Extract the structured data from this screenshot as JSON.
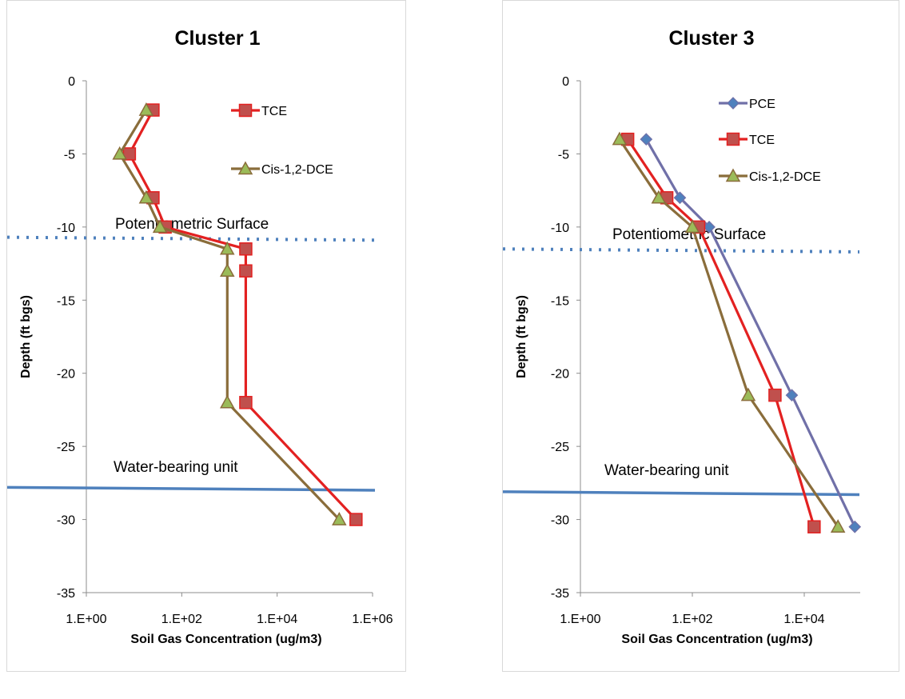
{
  "chart_data": [
    {
      "type": "line",
      "title": "Cluster 1",
      "xlabel": "Soil Gas Concentration (ug/m3)",
      "ylabel": "Depth (ft bgs)",
      "x_scale": "log",
      "xlim": [
        1,
        1000000
      ],
      "ylim": [
        -35,
        0
      ],
      "x_ticks": [
        "1.E+00",
        "1.E+02",
        "1.E+04",
        "1.E+06"
      ],
      "y_ticks": [
        "0",
        "-5",
        "-10",
        "-15",
        "-20",
        "-25",
        "-30",
        "-35"
      ],
      "grid": false,
      "legend_position": "top-right",
      "series": [
        {
          "name": "TCE",
          "color": "#e32121",
          "marker": "square",
          "marker_fill": "#c0504d",
          "points": [
            [
              25,
              -2
            ],
            [
              8,
              -5
            ],
            [
              25,
              -8
            ],
            [
              45,
              -10
            ],
            [
              2200,
              -11.5
            ],
            [
              2200,
              -13
            ],
            [
              2200,
              -22
            ],
            [
              450000,
              -30
            ]
          ]
        },
        {
          "name": "Cis-1,2-DCE",
          "color": "#8a6d3b",
          "marker": "triangle",
          "marker_fill": "#9bbb59",
          "points": [
            [
              18,
              -2
            ],
            [
              5,
              -5
            ],
            [
              18,
              -8
            ],
            [
              35,
              -10
            ],
            [
              900,
              -11.5
            ],
            [
              900,
              -13
            ],
            [
              900,
              -22
            ],
            [
              200000,
              -30
            ]
          ]
        }
      ],
      "annotations": [
        {
          "text": "Potentiometric Surface",
          "line_style": "dotted",
          "color": "#4f81bd",
          "depth": [
            -10.7,
            -10.9
          ]
        },
        {
          "text": "Water-bearing unit",
          "line_style": "solid",
          "color": "#4f81bd",
          "depth": [
            -27.8,
            -28.0
          ]
        }
      ]
    },
    {
      "type": "line",
      "title": "Cluster 3",
      "xlabel": "Soil Gas Concentration (ug/m3)",
      "ylabel": "Depth (ft bgs)",
      "x_scale": "log",
      "xlim": [
        1,
        100000
      ],
      "ylim": [
        -35,
        0
      ],
      "x_ticks": [
        "1.E+00",
        "1.E+02",
        "1.E+04"
      ],
      "y_ticks": [
        "0",
        "-5",
        "-10",
        "-15",
        "-20",
        "-25",
        "-30",
        "-35"
      ],
      "grid": false,
      "legend_position": "top-right",
      "series": [
        {
          "name": "PCE",
          "color": "#7070a8",
          "marker": "diamond",
          "marker_fill": "#4f81bd",
          "points": [
            [
              15,
              -4
            ],
            [
              60,
              -8
            ],
            [
              200,
              -10
            ],
            [
              6000,
              -21.5
            ],
            [
              80000,
              -30.5
            ]
          ]
        },
        {
          "name": "TCE",
          "color": "#e32121",
          "marker": "square",
          "marker_fill": "#c0504d",
          "points": [
            [
              7,
              -4
            ],
            [
              35,
              -8
            ],
            [
              130,
              -10
            ],
            [
              3000,
              -21.5
            ],
            [
              15000,
              -30.5
            ]
          ]
        },
        {
          "name": "Cis-1,2-DCE",
          "color": "#8a6d3b",
          "marker": "triangle",
          "marker_fill": "#9bbb59",
          "points": [
            [
              5,
              -4
            ],
            [
              25,
              -8
            ],
            [
              100,
              -10
            ],
            [
              1000,
              -21.5
            ],
            [
              40000,
              -30.5
            ]
          ]
        }
      ],
      "annotations": [
        {
          "text": "Potentiometric Surface",
          "line_style": "dotted",
          "color": "#4f81bd",
          "depth": [
            -11.5,
            -11.7
          ]
        },
        {
          "text": "Water-bearing unit",
          "line_style": "solid",
          "color": "#4f81bd",
          "depth": [
            -28.1,
            -28.3
          ]
        }
      ]
    }
  ]
}
